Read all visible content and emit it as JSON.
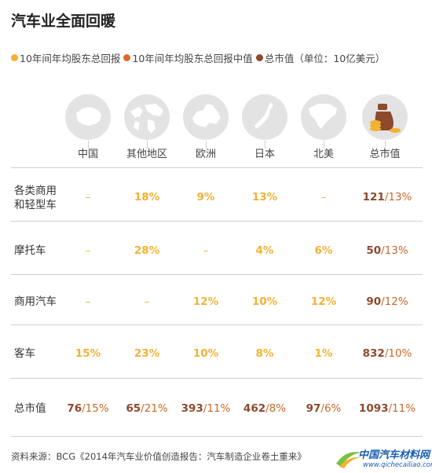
{
  "title": "汽车业全面回暖",
  "legend": [
    {
      "label": "10年间年均股东总回报",
      "color": "#f2b233"
    },
    {
      "label": "10年间年均股东总回报中值",
      "color": "#e06a2a"
    },
    {
      "label": "总市值（单位：10亿美元）",
      "color": "#8d4a2c"
    }
  ],
  "regions": [
    {
      "label": "中国",
      "icon": "china-map-icon"
    },
    {
      "label": "其他地区",
      "icon": "world-map-icon"
    },
    {
      "label": "欧洲",
      "icon": "europe-map-icon"
    },
    {
      "label": "日本",
      "icon": "japan-map-icon"
    },
    {
      "label": "北美",
      "icon": "north-america-map-icon"
    },
    {
      "label": "总市值",
      "icon": "money-bag-icon"
    }
  ],
  "rows": [
    {
      "label": "各类商用\n和轻型车",
      "cells": [
        "–",
        "18%",
        "9%",
        "13%",
        "–"
      ],
      "total_value": "121",
      "total_pct": "/13%"
    },
    {
      "label": "摩托车",
      "cells": [
        "–",
        "28%",
        "–",
        "4%",
        "6%"
      ],
      "total_value": "50",
      "total_pct": "/13%"
    },
    {
      "label": "商用汽车",
      "cells": [
        "–",
        "–",
        "12%",
        "10%",
        "12%"
      ],
      "total_value": "90",
      "total_pct": "/12%"
    },
    {
      "label": "客车",
      "cells": [
        "15%",
        "23%",
        "10%",
        "8%",
        "1%"
      ],
      "total_value": "832",
      "total_pct": "/10%"
    }
  ],
  "total_row": {
    "label": "总市值",
    "cells": [
      {
        "value": "76",
        "pct": "/15%"
      },
      {
        "value": "65",
        "pct": "/21%"
      },
      {
        "value": "393",
        "pct": "/11%"
      },
      {
        "value": "462",
        "pct": "/8%"
      },
      {
        "value": "97",
        "pct": "/6%"
      },
      {
        "value": "1093",
        "pct": "/11%"
      }
    ]
  },
  "source": "资料来源：BCG《2014年汽车业价值创造报告：汽车制造企业卷土重来》",
  "watermark": {
    "name": "中国汽车材料网",
    "url": "www.qichecailiao.com"
  }
}
